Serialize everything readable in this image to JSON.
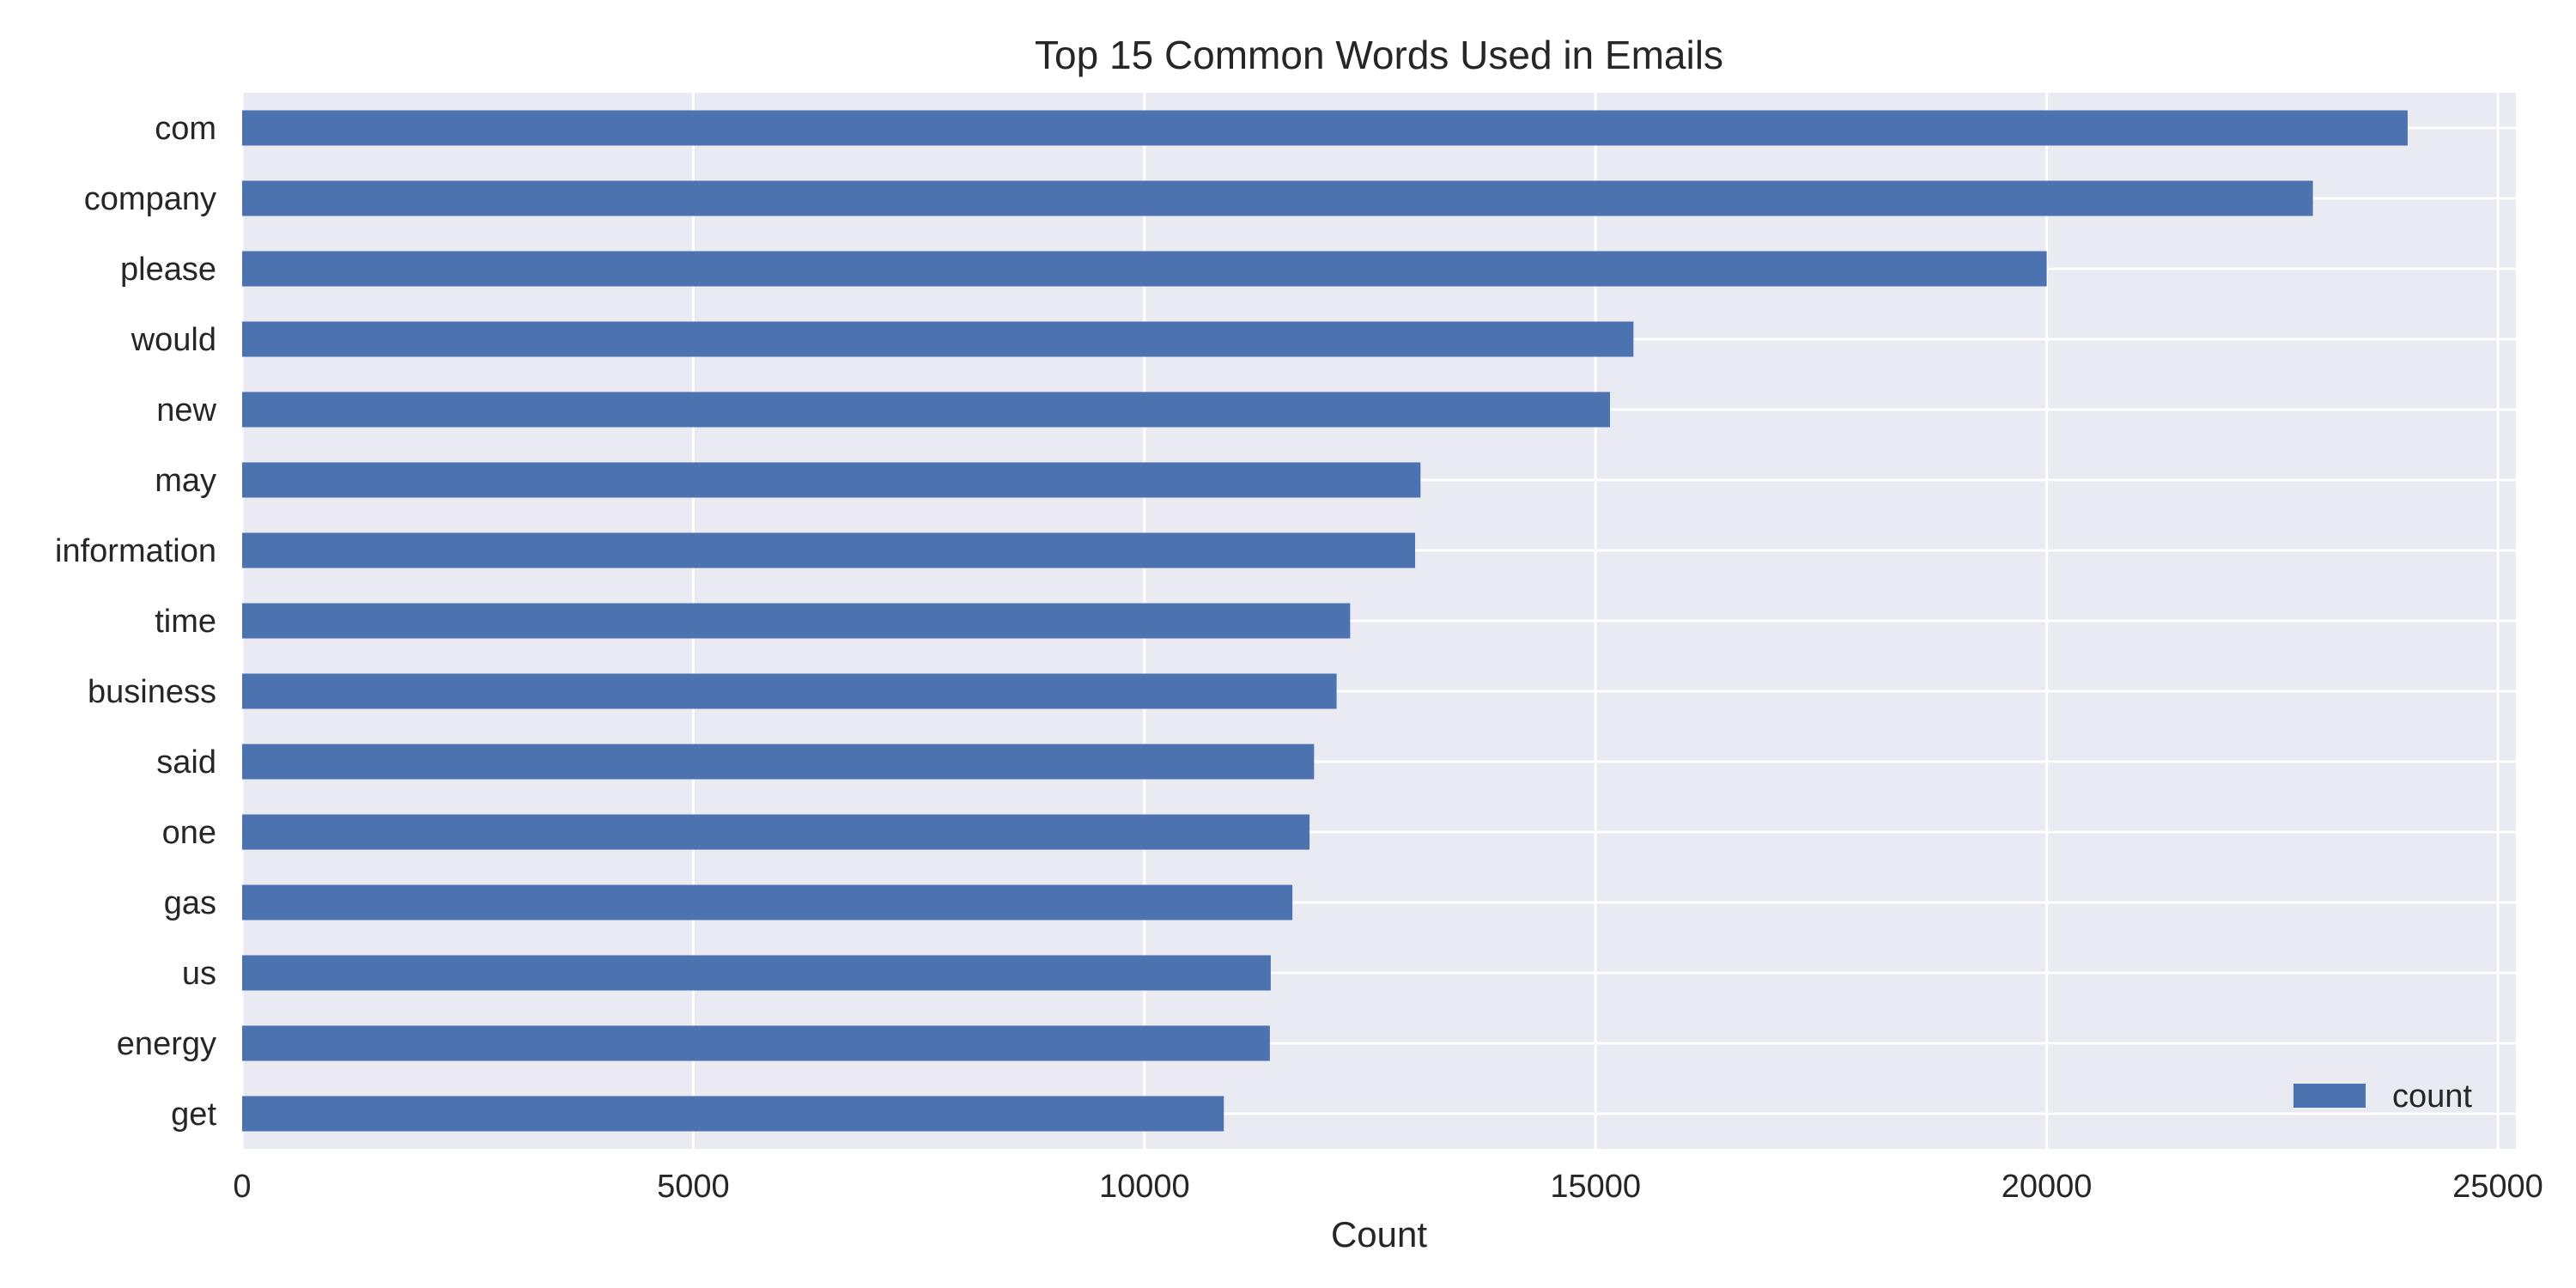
{
  "chart_data": {
    "type": "bar",
    "orientation": "horizontal",
    "title": "Top 15 Common Words Used in Emails",
    "xlabel": "Count",
    "ylabel": "",
    "xlim": [
      0,
      25200
    ],
    "xticks": [
      0,
      5000,
      10000,
      15000,
      20000,
      25000
    ],
    "xtick_labels": [
      "0",
      "5000",
      "10000",
      "15000",
      "20000",
      "25000"
    ],
    "categories": [
      "com",
      "company",
      "please",
      "would",
      "new",
      "may",
      "information",
      "time",
      "business",
      "said",
      "one",
      "gas",
      "us",
      "energy",
      "get"
    ],
    "series": [
      {
        "name": "count",
        "values": [
          24000,
          22950,
          20000,
          15420,
          15160,
          13060,
          13000,
          12280,
          12130,
          11880,
          11830,
          11640,
          11400,
          11390,
          10880
        ]
      }
    ],
    "grid": true,
    "legend_position": "lower-right",
    "colors": {
      "bar": "#4c72b0",
      "plot_background": "#eaeaf2",
      "grid": "#ffffff",
      "text": "#262626"
    }
  }
}
